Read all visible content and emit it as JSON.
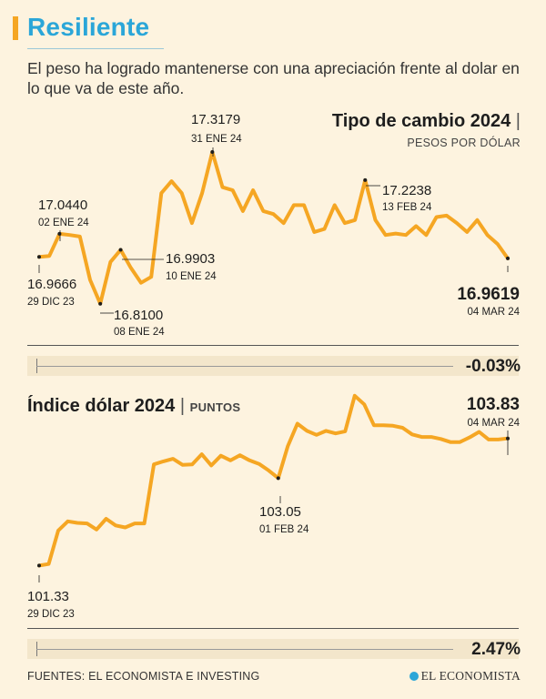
{
  "header": {
    "title": "Resiliente",
    "subtitle": "El peso ha logrado mantenerse con una apreciación frente al dolar en lo que va de este año."
  },
  "colors": {
    "title": "#2ba6d8",
    "line": "#f5a623",
    "background": "#fdf3df"
  },
  "chart_data": [
    {
      "type": "line",
      "title": "Tipo de cambio 2024",
      "unit": "PESOS POR DÓLAR",
      "ylim": [
        16.73,
        17.4
      ],
      "values": [
        16.9666,
        16.97,
        17.044,
        17.04,
        17.035,
        16.89,
        16.81,
        16.95,
        16.9903,
        16.93,
        16.88,
        16.9,
        17.18,
        17.22,
        17.18,
        17.08,
        17.18,
        17.3179,
        17.2,
        17.19,
        17.12,
        17.19,
        17.12,
        17.11,
        17.08,
        17.14,
        17.14,
        17.05,
        17.06,
        17.14,
        17.08,
        17.09,
        17.2238,
        17.09,
        17.04,
        17.045,
        17.04,
        17.07,
        17.04,
        17.1,
        17.105,
        17.08,
        17.05,
        17.09,
        17.04,
        17.01,
        16.9619
      ],
      "annotations": [
        {
          "index": 0,
          "value": "16.9666",
          "date": "29 DIC 23"
        },
        {
          "index": 2,
          "value": "17.0440",
          "date": "02 ENE 24"
        },
        {
          "index": 6,
          "value": "16.8100",
          "date": "08 ENE 24"
        },
        {
          "index": 8,
          "value": "16.9903",
          "date": "10 ENE 24"
        },
        {
          "index": 17,
          "value": "17.3179",
          "date": "31 ENE 24"
        },
        {
          "index": 32,
          "value": "17.2238",
          "date": "13 FEB 24"
        },
        {
          "index": 46,
          "value": "16.9619",
          "date": "04 MAR 24"
        }
      ],
      "change": "-0.03%"
    },
    {
      "type": "line",
      "title": "Índice dólar 2024",
      "unit": "PUNTOS",
      "ylim": [
        100.55,
        105.15
      ],
      "values": [
        101.33,
        101.36,
        102.02,
        102.2,
        102.17,
        102.16,
        102.04,
        102.25,
        102.12,
        102.08,
        102.16,
        102.16,
        103.32,
        103.38,
        103.43,
        103.31,
        103.32,
        103.52,
        103.3,
        103.49,
        103.4,
        103.5,
        103.4,
        103.33,
        103.2,
        103.05,
        103.68,
        104.12,
        103.98,
        103.9,
        103.98,
        103.93,
        103.97,
        104.67,
        104.5,
        104.09,
        104.09,
        104.08,
        104.04,
        103.91,
        103.86,
        103.86,
        103.82,
        103.76,
        103.76,
        103.85,
        103.96,
        103.81,
        103.81,
        103.83
      ],
      "annotations": [
        {
          "index": 0,
          "value": "101.33",
          "date": "29 DIC 23"
        },
        {
          "index": 25,
          "value": "103.05",
          "date": "01 FEB 24"
        },
        {
          "index": 49,
          "value": "103.83",
          "date": "04 MAR 24"
        }
      ],
      "change": "2.47%"
    }
  ],
  "footer": {
    "sources": "FUENTES: EL ECONOMISTA E INVESTING",
    "brand": "EL ECONOMISTA"
  }
}
